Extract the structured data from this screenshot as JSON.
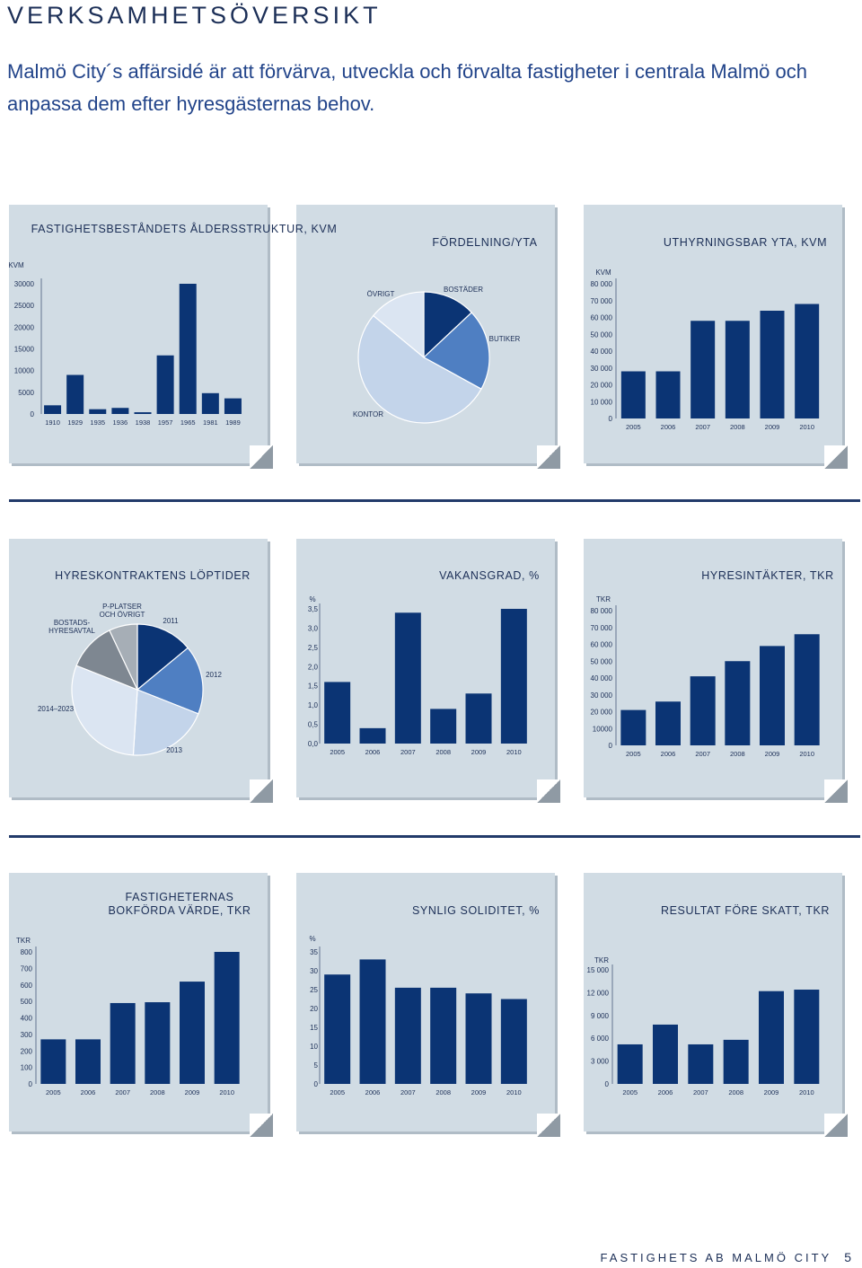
{
  "header": {
    "title": "VERKSAMHETSÖVERSIKT",
    "lead": "Malmö City´s affärsidé är att förvärva, utveckla och förvalta fastigheter i centrala Malmö och anpassa dem efter hyresgästernas behov."
  },
  "footer": {
    "company": "FASTIGHETS AB MALMÖ CITY",
    "page": "5"
  },
  "colors": {
    "bar": "#0b3474",
    "panel": "#d1dce4",
    "pie_1": "#0b3474",
    "pie_2": "#4f7fc2",
    "pie_3": "#c3d4ea",
    "pie_4": "#dbe5f2",
    "pie_5": "#7e8791",
    "pie_6": "#a6aeb6"
  },
  "chart_data": [
    {
      "type": "bar",
      "title": "FASTIGHETSBESTÅNDETS ÅLDERSSTRUKTUR, KVM",
      "ylabel": "KVM",
      "ylim": [
        0,
        30000
      ],
      "yticks": [
        "0",
        "5000",
        "10000",
        "15000",
        "20000",
        "25000",
        "30000"
      ],
      "categories": [
        "1910",
        "1929",
        "1935",
        "1936",
        "1938",
        "1957",
        "1965",
        "1981",
        "1989"
      ],
      "values": [
        2000,
        9000,
        1100,
        1400,
        400,
        13500,
        30000,
        4800,
        3600
      ]
    },
    {
      "type": "pie",
      "title": "FÖRDELNING/YTA",
      "slices": [
        {
          "label": "BOSTÄDER",
          "value": 13
        },
        {
          "label": "BUTIKER",
          "value": 20
        },
        {
          "label": "KONTOR",
          "value": 53
        },
        {
          "label": "ÖVRIGT",
          "value": 14
        }
      ]
    },
    {
      "type": "bar",
      "title": "UTHYRNINGSBAR YTA, KVM",
      "ylabel": "KVM",
      "ylim": [
        0,
        80000
      ],
      "yticks": [
        "0",
        "10 000",
        "20 000",
        "30 000",
        "40 000",
        "50 000",
        "60 000",
        "70 000",
        "80 000"
      ],
      "categories": [
        "2005",
        "2006",
        "2007",
        "2008",
        "2009",
        "2010"
      ],
      "values": [
        28000,
        28000,
        58000,
        58000,
        64000,
        68000
      ]
    },
    {
      "type": "pie",
      "title": "HYRESKONTRAKTENS LÖPTIDER",
      "slices": [
        {
          "label": "2011",
          "value": 14
        },
        {
          "label": "2012",
          "value": 17
        },
        {
          "label": "2013",
          "value": 20
        },
        {
          "label": "2014–2023",
          "value": 30
        },
        {
          "label": "BOSTADS-\nHYRESAVTAL",
          "value": 12
        },
        {
          "label": "P-PLATSER\nOCH ÖVRIGT",
          "value": 7
        }
      ]
    },
    {
      "type": "bar",
      "title": "VAKANSGRAD, %",
      "ylabel": "%",
      "ylim": [
        0,
        3.5
      ],
      "yticks": [
        "0,0",
        "0,5",
        "1,0",
        "1,5",
        "2,0",
        "2,5",
        "3,0",
        "3,5"
      ],
      "categories": [
        "2005",
        "2006",
        "2007",
        "2008",
        "2009",
        "2010"
      ],
      "values": [
        1.6,
        0.4,
        3.4,
        0.9,
        1.3,
        3.5
      ]
    },
    {
      "type": "bar",
      "title": "HYRESINTÄKTER, TKR",
      "ylabel": "TKR",
      "ylim": [
        0,
        80000
      ],
      "yticks": [
        "0",
        "10000",
        "20 000",
        "30 000",
        "40 000",
        "50 000",
        "60 000",
        "70 000",
        "80 000"
      ],
      "categories": [
        "2005",
        "2006",
        "2007",
        "2008",
        "2009",
        "2010"
      ],
      "values": [
        21000,
        26000,
        41000,
        50000,
        59000,
        66000
      ]
    },
    {
      "type": "bar",
      "title": "FASTIGHETERNAS\nBOKFÖRDA VÄRDE, TKR",
      "ylabel": "TKR",
      "ylim": [
        0,
        800
      ],
      "yticks": [
        "0",
        "100",
        "200",
        "300",
        "400",
        "500",
        "600",
        "700",
        "800"
      ],
      "categories": [
        "2005",
        "2006",
        "2007",
        "2008",
        "2009",
        "2010"
      ],
      "values": [
        270,
        270,
        490,
        495,
        620,
        800
      ]
    },
    {
      "type": "bar",
      "title": "SYNLIG SOLIDITET, %",
      "ylabel": "%",
      "ylim": [
        0,
        35
      ],
      "yticks": [
        "0",
        "5",
        "10",
        "15",
        "20",
        "25",
        "30",
        "35"
      ],
      "categories": [
        "2005",
        "2006",
        "2007",
        "2008",
        "2009",
        "2010"
      ],
      "values": [
        29,
        33,
        25.5,
        25.5,
        24,
        22.5
      ]
    },
    {
      "type": "bar",
      "title": "RESULTAT FÖRE SKATT, TKR",
      "ylabel": "TKR",
      "ylim": [
        0,
        15000
      ],
      "yticks": [
        "0",
        "3 000",
        "6 000",
        "9 000",
        "12 000",
        "15 000"
      ],
      "categories": [
        "2005",
        "2006",
        "2007",
        "2008",
        "2009",
        "2010"
      ],
      "values": [
        5200,
        7800,
        5200,
        5800,
        12200,
        12400
      ]
    }
  ]
}
